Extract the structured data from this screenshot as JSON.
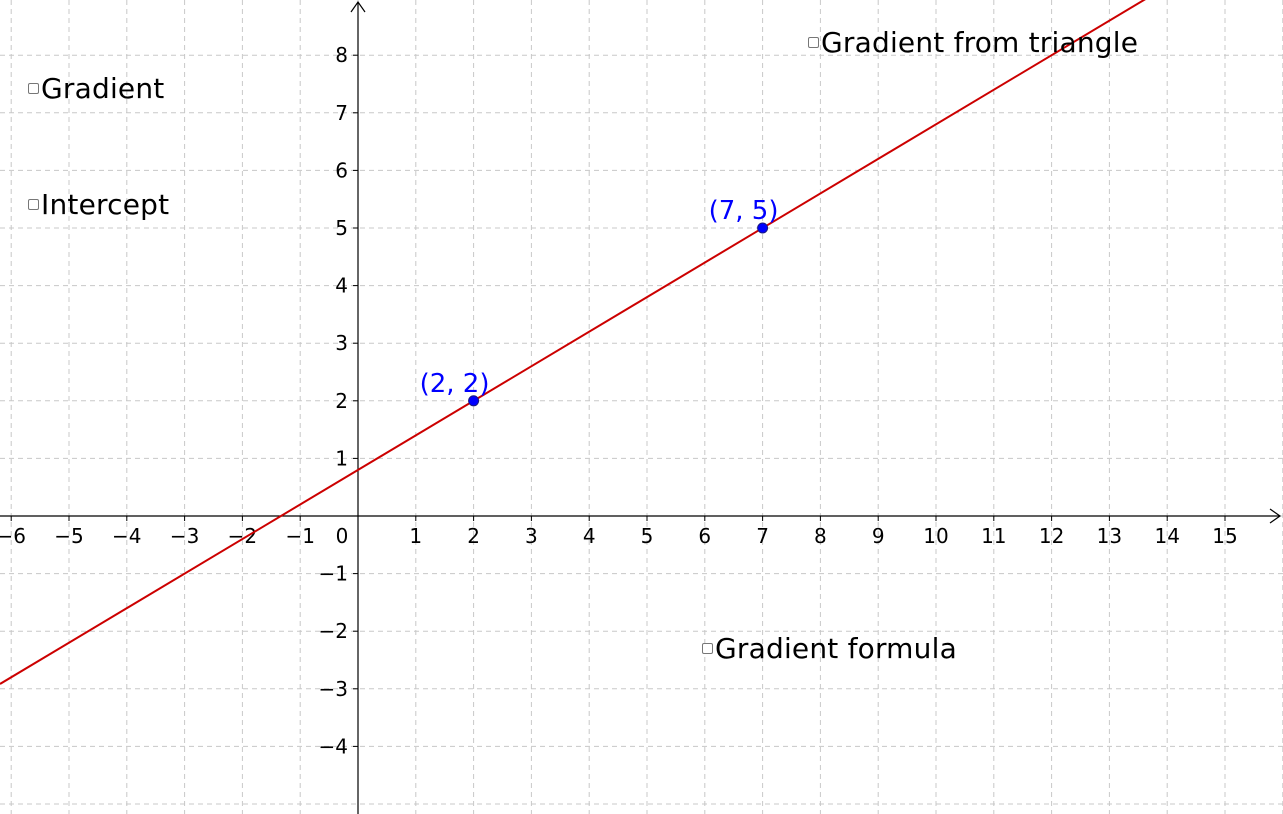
{
  "axes": {
    "x_ticks": [
      "−6",
      "−5",
      "−4",
      "−3",
      "−2",
      "−1",
      "0",
      "1",
      "2",
      "3",
      "4",
      "5",
      "6",
      "7",
      "8",
      "9",
      "10",
      "11",
      "12",
      "13",
      "14",
      "15"
    ],
    "y_ticks_pos": [
      "1",
      "2",
      "3",
      "4",
      "5",
      "6",
      "7",
      "8"
    ],
    "y_ticks_neg": [
      "−1",
      "−2",
      "−3",
      "−4"
    ]
  },
  "line": {
    "slope": 0.6,
    "intercept": 0.8,
    "color": "#cc0000"
  },
  "points": [
    {
      "x": 2,
      "y": 2,
      "label": "(2, 2)",
      "color": "#0000ff"
    },
    {
      "x": 7,
      "y": 5,
      "label": "(7, 5)",
      "color": "#0000ff"
    }
  ],
  "checkboxes": {
    "gradient": {
      "label": "Gradient",
      "checked": false
    },
    "intercept": {
      "label": "Intercept",
      "checked": false
    },
    "gradient_from_triangle": {
      "label": "Gradient from triangle",
      "checked": false
    },
    "gradient_formula": {
      "label": "Gradient formula",
      "checked": false
    }
  }
}
